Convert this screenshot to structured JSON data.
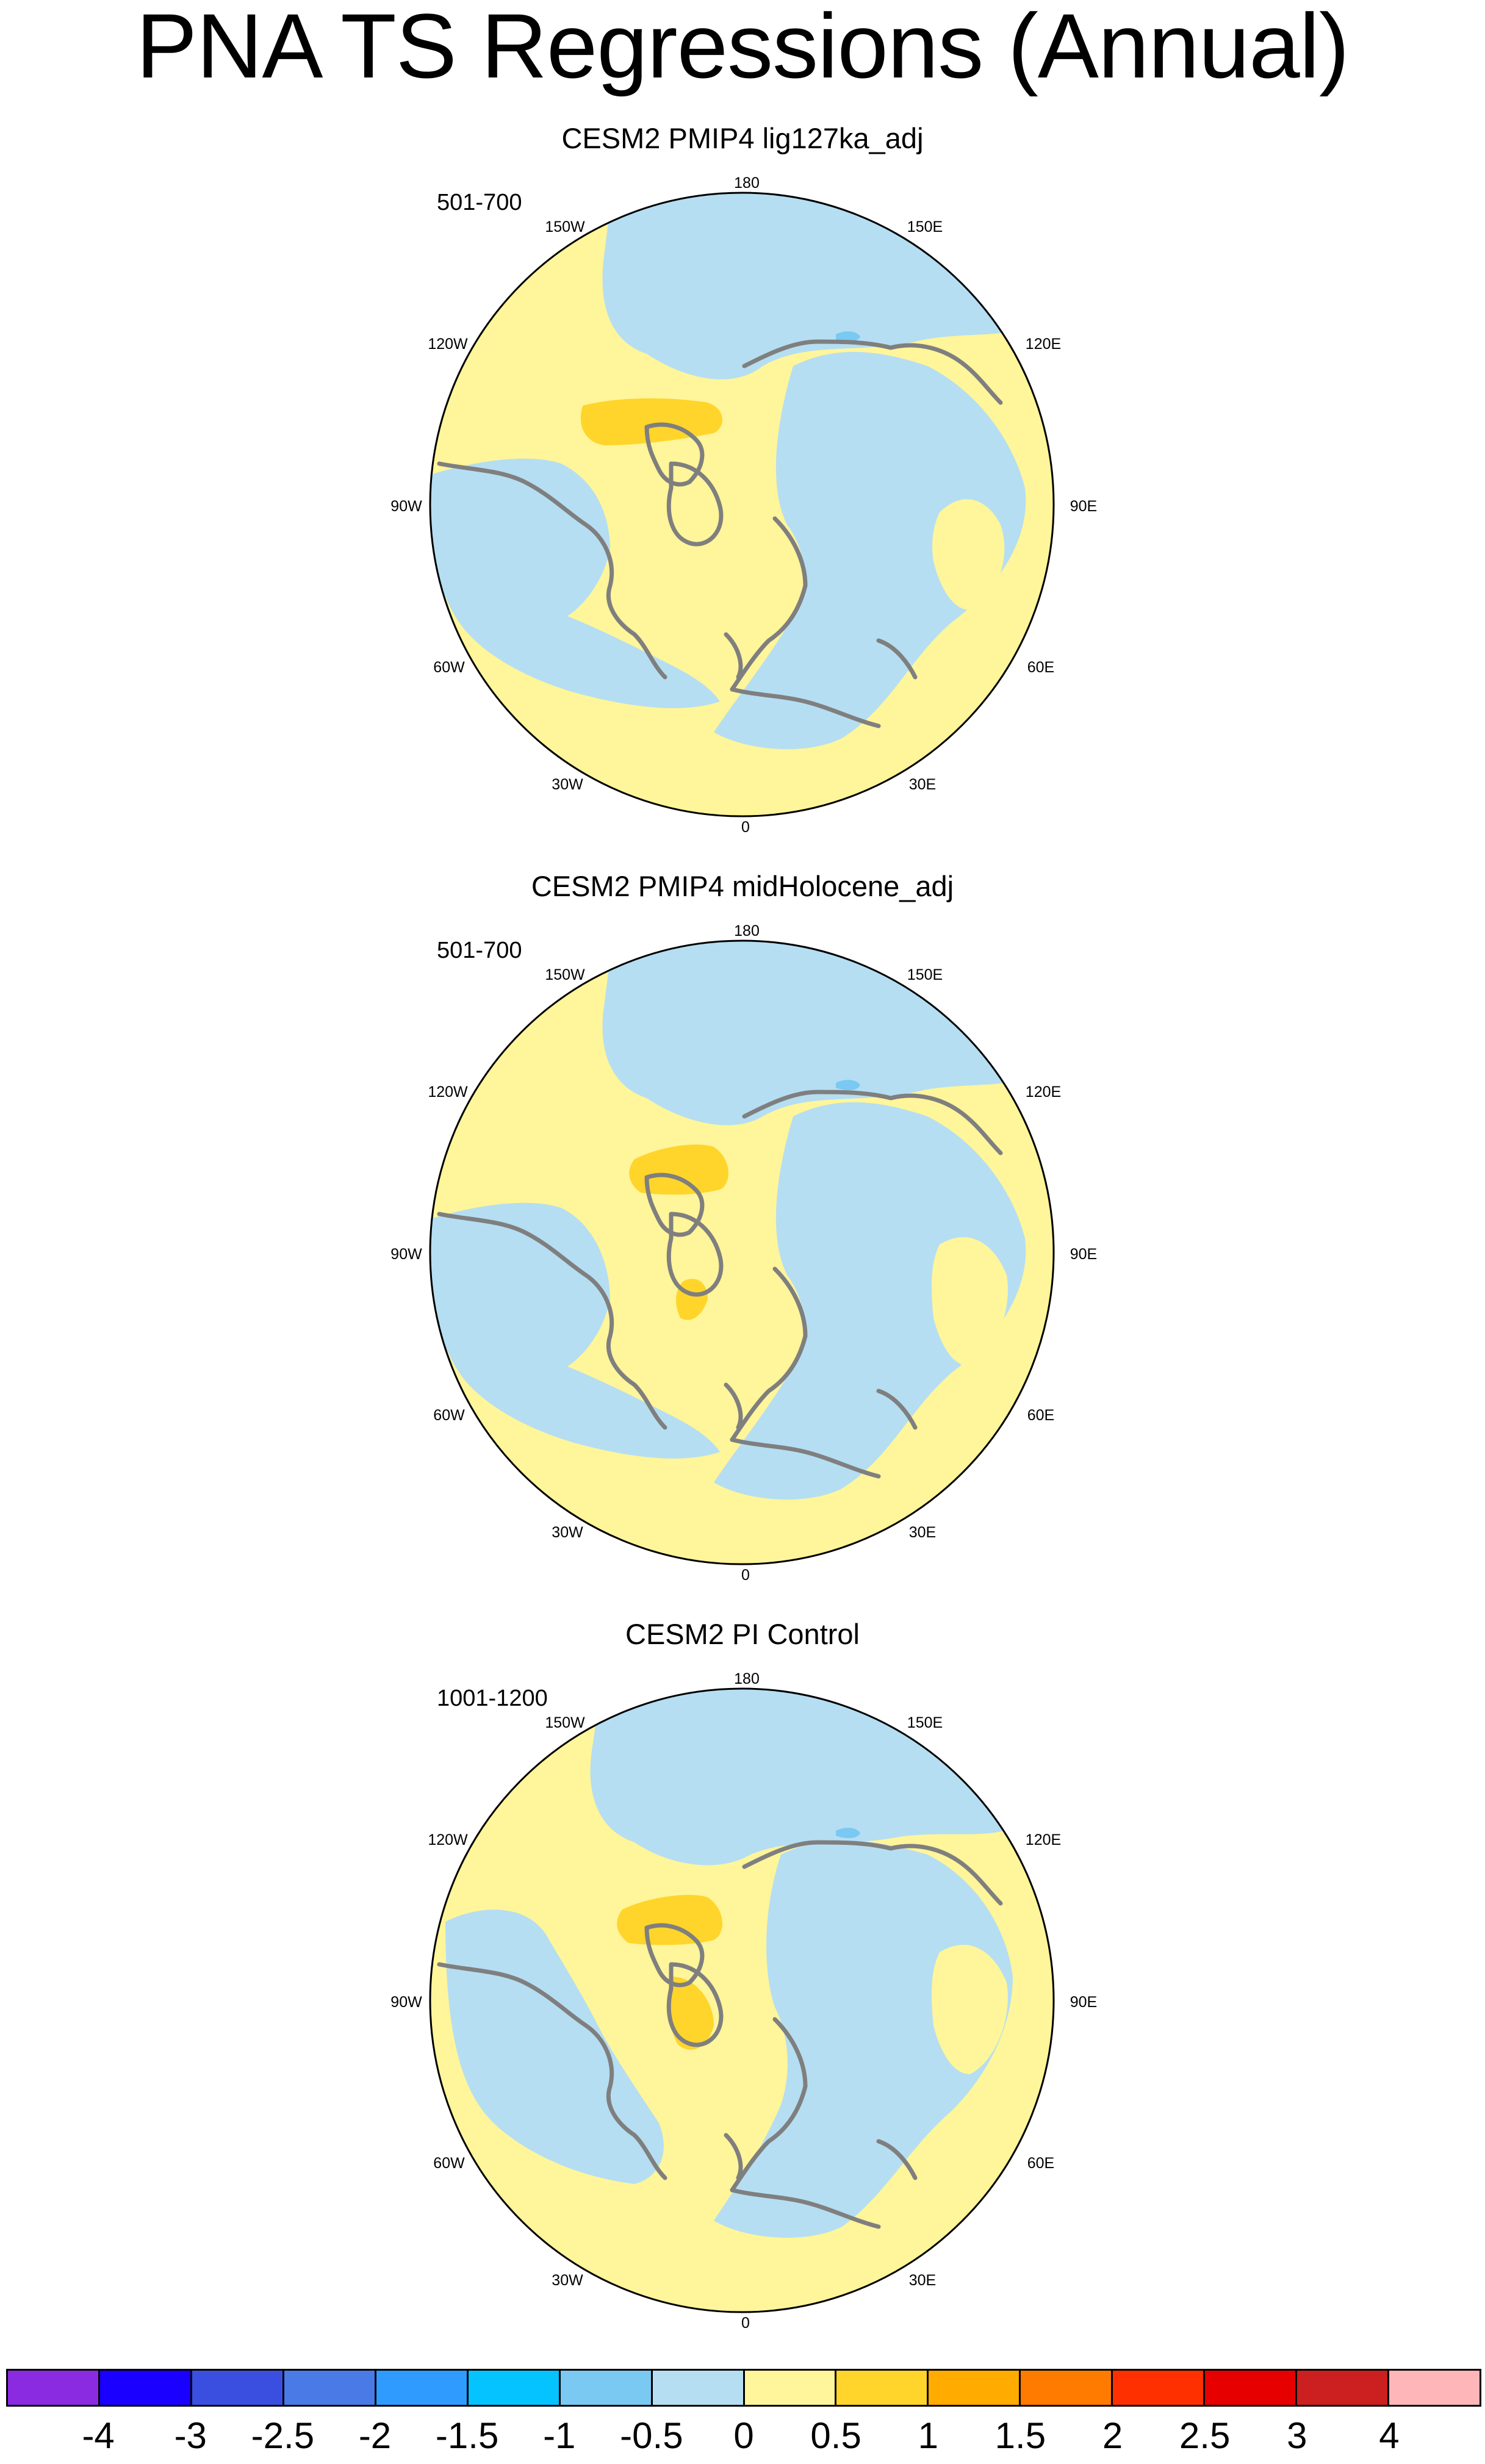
{
  "title": "PNA TS Regressions (Annual)",
  "panels": [
    {
      "title": "CESM2 PMIP4 lig127ka_adj",
      "period": "501-700"
    },
    {
      "title": "CESM2 PMIP4 midHolocene_adj",
      "period": "501-700"
    },
    {
      "title": "CESM2 PI Control",
      "period": "1001-1200"
    }
  ],
  "longitude_labels": {
    "n": "180",
    "nne": "150E",
    "ene": "120E",
    "e": "90E",
    "ese": "60E",
    "sse": "30E",
    "s": "0",
    "ssw": "30W",
    "wsw": "60W",
    "w": "90W",
    "wnw": "120W",
    "nnw": "150W"
  },
  "colorbar": {
    "colors": [
      "#8a2be2",
      "#1a00ff",
      "#3a4fe0",
      "#4a7ae6",
      "#2f9bff",
      "#05c3ff",
      "#79c9f3",
      "#b5def2",
      "#fff59a",
      "#ffd52b",
      "#ffab00",
      "#ff7b00",
      "#ff3000",
      "#e60000",
      "#cc1f1f",
      "#ffb6b9"
    ],
    "labels": [
      "-4",
      "-3",
      "-2.5",
      "-2",
      "-1.5",
      "-1",
      "-0.5",
      "0",
      "0.5",
      "1",
      "1.5",
      "2",
      "2.5",
      "3",
      "4"
    ]
  },
  "map_colors": {
    "warm": "#fff59a",
    "cool": "#b5def2",
    "warmer": "#ffd52b",
    "cooler": "#79c9f3",
    "coast": "#7f7f7f"
  }
}
